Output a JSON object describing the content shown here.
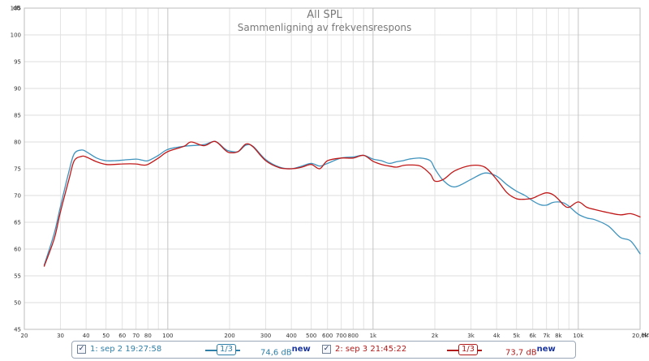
{
  "chart_data": {
    "type": "line",
    "title": "All SPL",
    "subtitle": "Sammenligning av frekvensrespons",
    "xscale": "log",
    "xlim": [
      20,
      20000
    ],
    "ylim": [
      45,
      105
    ],
    "y_unit_label": "dB",
    "x_unit_label": "Hz",
    "grid": true,
    "yticks": [
      45,
      50,
      55,
      60,
      65,
      70,
      75,
      80,
      85,
      90,
      95,
      100,
      105
    ],
    "xtick_values": [
      20,
      30,
      40,
      50,
      60,
      70,
      80,
      100,
      200,
      300,
      400,
      500,
      600,
      700,
      800,
      1000,
      2000,
      3000,
      4000,
      5000,
      6000,
      7000,
      8000,
      10000,
      20000
    ],
    "xtick_labels": [
      "20",
      "30",
      "40",
      "50",
      "60",
      "70",
      "80",
      "100",
      "200",
      "300",
      "400",
      "500",
      "600",
      "700",
      "800",
      "1k",
      "2k",
      "3k",
      "4k",
      "5k",
      "6k",
      "7k",
      "8k",
      "10k",
      "20,0k"
    ],
    "series": [
      {
        "name": "1: sep 2 19:27:58",
        "color": "#3f93bd",
        "x": [
          25,
          28,
          30,
          33,
          35,
          38,
          40,
          45,
          50,
          55,
          60,
          70,
          75,
          80,
          90,
          100,
          120,
          150,
          170,
          190,
          200,
          220,
          240,
          260,
          300,
          350,
          400,
          450,
          500,
          550,
          600,
          700,
          800,
          900,
          1000,
          1100,
          1200,
          1300,
          1400,
          1500,
          1700,
          1900,
          2000,
          2200,
          2500,
          3000,
          3500,
          4000,
          4500,
          5000,
          5500,
          6000,
          6500,
          7000,
          7500,
          8000,
          8500,
          9000,
          10000,
          11000,
          12000,
          14000,
          16000,
          18000,
          20000
        ],
        "y": [
          57.0,
          63.0,
          68.0,
          74.5,
          77.8,
          78.5,
          78.2,
          77.0,
          76.5,
          76.5,
          76.6,
          76.8,
          76.6,
          76.5,
          77.5,
          78.6,
          79.2,
          79.5,
          80.1,
          78.7,
          78.3,
          78.2,
          79.4,
          79.2,
          76.7,
          75.3,
          75.0,
          75.5,
          76.0,
          75.5,
          76.0,
          77.0,
          77.2,
          77.5,
          76.8,
          76.5,
          76.0,
          76.3,
          76.5,
          76.8,
          77.0,
          76.5,
          75.0,
          72.8,
          71.6,
          73.0,
          74.2,
          73.6,
          72.0,
          70.8,
          70.0,
          69.0,
          68.3,
          68.2,
          68.7,
          68.8,
          68.6,
          68.0,
          66.5,
          65.8,
          65.5,
          64.3,
          62.2,
          61.5,
          59.1
        ]
      },
      {
        "name": "2: sep 3 21:45:22",
        "color": "#c01818",
        "x": [
          25,
          28,
          30,
          33,
          35,
          38,
          40,
          45,
          50,
          55,
          60,
          70,
          75,
          80,
          90,
          100,
          120,
          130,
          150,
          170,
          190,
          200,
          220,
          240,
          260,
          300,
          350,
          400,
          450,
          500,
          550,
          600,
          700,
          800,
          900,
          1000,
          1100,
          1200,
          1300,
          1400,
          1500,
          1700,
          1900,
          2000,
          2200,
          2500,
          3000,
          3500,
          4000,
          4500,
          5000,
          5500,
          6000,
          6500,
          7000,
          7500,
          8000,
          8500,
          9000,
          10000,
          11000,
          12000,
          14000,
          16000,
          18000,
          20000
        ],
        "y": [
          56.8,
          62.0,
          67.0,
          73.0,
          76.5,
          77.3,
          77.2,
          76.3,
          75.8,
          75.8,
          75.9,
          75.9,
          75.7,
          75.8,
          77.0,
          78.2,
          79.2,
          80.0,
          79.3,
          80.1,
          78.5,
          78.0,
          78.2,
          79.6,
          79.1,
          76.5,
          75.2,
          75.0,
          75.3,
          75.8,
          75.0,
          76.5,
          77.0,
          77.0,
          77.5,
          76.4,
          75.8,
          75.5,
          75.3,
          75.6,
          75.7,
          75.5,
          74.0,
          72.7,
          73.0,
          74.6,
          75.6,
          75.3,
          73.0,
          70.5,
          69.4,
          69.3,
          69.5,
          70.1,
          70.5,
          70.2,
          69.3,
          68.2,
          67.8,
          68.8,
          67.8,
          67.4,
          66.8,
          66.4,
          66.6,
          66.0
        ]
      }
    ]
  },
  "legend": {
    "items": [
      {
        "label": "1: sep 2 19:27:58",
        "smoothing": "1/3",
        "value": "74,6 dB",
        "badge": "new",
        "color": "#2f7fa8",
        "checked": "✓"
      },
      {
        "label": "2: sep 3 21:45:22",
        "smoothing": "1/3",
        "value": "73,7 dB",
        "badge": "new",
        "color": "#b01a1a",
        "checked": "✓"
      }
    ]
  }
}
